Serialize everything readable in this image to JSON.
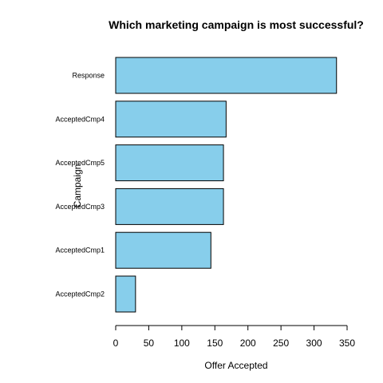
{
  "chart_data": {
    "type": "bar",
    "orientation": "horizontal",
    "title": "Which marketing campaign is most successful?",
    "xlabel": "Offer Accepted",
    "ylabel": "Campaign",
    "categories": [
      "Response",
      "AcceptedCmp4",
      "AcceptedCmp5",
      "AcceptedCmp3",
      "AcceptedCmp1",
      "AcceptedCmp2"
    ],
    "values": [
      334,
      167,
      163,
      163,
      144,
      30
    ],
    "xticks": [
      "0",
      "50",
      "100",
      "150",
      "200",
      "250",
      "300",
      "350"
    ],
    "xlim": [
      0,
      350
    ],
    "grid": false,
    "bar_color": "#87CEEB",
    "bar_border_color": "#000000"
  }
}
